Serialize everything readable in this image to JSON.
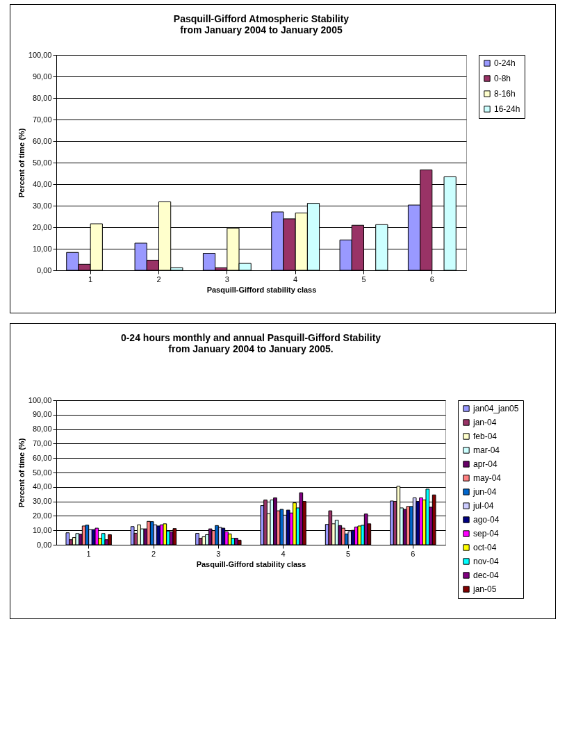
{
  "chart_data": [
    {
      "type": "bar",
      "title": [
        "Pasquill-Gifford Atmospheric Stability",
        "from January 2004 to January 2005"
      ],
      "xlabel": "Pasquill-Gifford stability class",
      "ylabel": "Percent of time (%)",
      "categories": [
        "1",
        "2",
        "3",
        "4",
        "5",
        "6"
      ],
      "series": [
        {
          "name": "0-24h",
          "color": "#9999ff",
          "values": [
            8.3,
            12.6,
            7.9,
            27.1,
            14.1,
            30.3
          ]
        },
        {
          "name": "0-8h",
          "color": "#993366",
          "values": [
            2.8,
            4.7,
            1.2,
            23.9,
            20.9,
            46.6
          ]
        },
        {
          "name": "8-16h",
          "color": "#ffffcc",
          "values": [
            21.6,
            31.8,
            19.6,
            26.6,
            null,
            null
          ]
        },
        {
          "name": "16-24h",
          "color": "#ccffff",
          "values": [
            null,
            1.2,
            3.2,
            31.1,
            21.2,
            43.4
          ]
        }
      ],
      "ylim": [
        0,
        100
      ],
      "yticks": [
        {
          "value": 0,
          "label": "0,00"
        },
        {
          "value": 10,
          "label": "10,00"
        },
        {
          "value": 20,
          "label": "20,00"
        },
        {
          "value": 30,
          "label": "30,00"
        },
        {
          "value": 40,
          "label": "40,00"
        },
        {
          "value": 50,
          "label": "50,00"
        },
        {
          "value": 60,
          "label": "60,00"
        },
        {
          "value": 70,
          "label": "70,00"
        },
        {
          "value": 80,
          "label": "80,00"
        },
        {
          "value": 90,
          "label": "90,00"
        },
        {
          "value": 100,
          "label": "100,00"
        }
      ],
      "grid": "y",
      "legend": "right"
    },
    {
      "type": "bar",
      "title": [
        "0-24 hours monthly and annual Pasquill-Gifford Stability",
        "from January 2004 to January 2005."
      ],
      "xlabel": "Pasquill-Gifford stability class",
      "ylabel": "Percent of time (%)",
      "categories": [
        "1",
        "2",
        "3",
        "4",
        "5",
        "6"
      ],
      "series": [
        {
          "name": "jan04_jan05",
          "color": "#9999ff",
          "values": [
            8.3,
            12.6,
            7.9,
            27.1,
            14.1,
            30.3
          ]
        },
        {
          "name": "jan-04",
          "color": "#993366",
          "values": [
            3.5,
            8,
            4.5,
            31,
            23.5,
            30
          ]
        },
        {
          "name": "feb-04",
          "color": "#ffffcc",
          "values": [
            5,
            13.8,
            5.5,
            21.5,
            14.5,
            40.5
          ]
        },
        {
          "name": "mar-04",
          "color": "#ccffff",
          "values": [
            7.8,
            11,
            7,
            31,
            17,
            25.5
          ]
        },
        {
          "name": "apr-04",
          "color": "#660066",
          "values": [
            7.3,
            11,
            11,
            32.5,
            13.3,
            24.5
          ]
        },
        {
          "name": "may-04",
          "color": "#ff8080",
          "values": [
            13,
            16.2,
            9.8,
            23.5,
            11.5,
            26.5
          ]
        },
        {
          "name": "jun-04",
          "color": "#0066cc",
          "values": [
            13.6,
            16,
            13.3,
            24.5,
            7.5,
            26.5
          ]
        },
        {
          "name": "jul-04",
          "color": "#ccccff",
          "values": [
            10.5,
            13.8,
            12,
            20.5,
            9,
            32.5
          ]
        },
        {
          "name": "ago-04",
          "color": "#000080",
          "values": [
            10.5,
            13,
            11.5,
            24,
            10,
            30
          ]
        },
        {
          "name": "sep-04",
          "color": "#ff00ff",
          "values": [
            11.5,
            13.8,
            9,
            22,
            12.3,
            32.5
          ]
        },
        {
          "name": "oct-04",
          "color": "#ffff00",
          "values": [
            4.5,
            14.5,
            7.5,
            29,
            13,
            31
          ]
        },
        {
          "name": "nov-04",
          "color": "#00ffff",
          "values": [
            7.8,
            9.5,
            4.5,
            25.5,
            13.5,
            38.5
          ]
        },
        {
          "name": "dec-04",
          "color": "#800080",
          "values": [
            3.5,
            9,
            4.5,
            36,
            21.3,
            26
          ]
        },
        {
          "name": "jan-05",
          "color": "#800000",
          "values": [
            7,
            11.2,
            3.2,
            30,
            14.5,
            34.5
          ]
        }
      ],
      "ylim": [
        0,
        100
      ],
      "yticks": [
        {
          "value": 0,
          "label": "0,00"
        },
        {
          "value": 10,
          "label": "10,00"
        },
        {
          "value": 20,
          "label": "20,00"
        },
        {
          "value": 30,
          "label": "30,00"
        },
        {
          "value": 40,
          "label": "40,00"
        },
        {
          "value": 50,
          "label": "50,00"
        },
        {
          "value": 60,
          "label": "60,00"
        },
        {
          "value": 70,
          "label": "70,00"
        },
        {
          "value": 80,
          "label": "80,00"
        },
        {
          "value": 90,
          "label": "90,00"
        },
        {
          "value": 100,
          "label": "100,00"
        }
      ],
      "grid": "y",
      "legend": "right"
    }
  ]
}
